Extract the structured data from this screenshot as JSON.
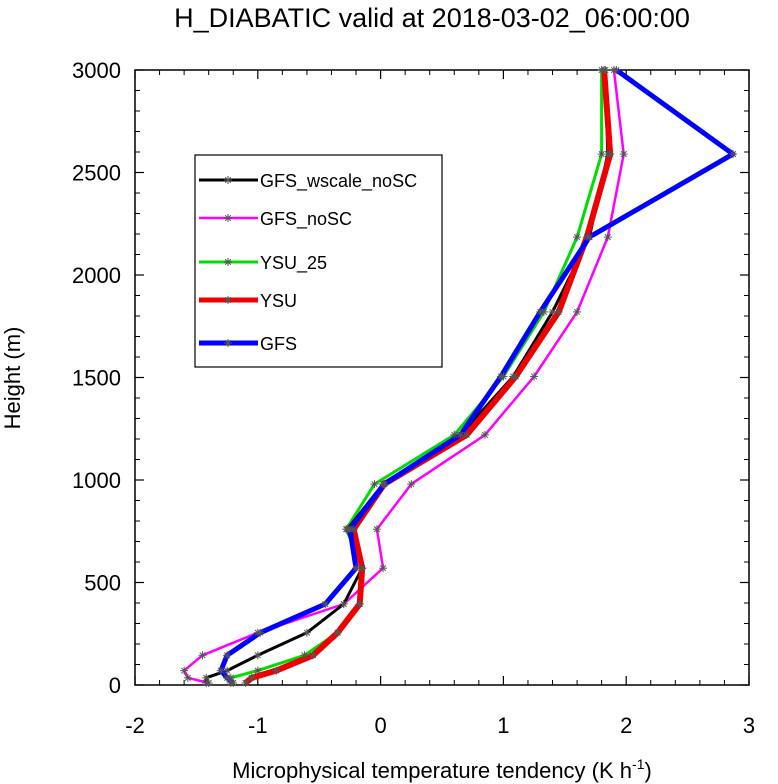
{
  "chart_data": {
    "type": "line",
    "title": "H_DIABATIC valid at 2018-03-02_06:00:00",
    "xlabel": "Microphysical temperature tendency (K h",
    "xlabel_sup": "-1",
    "xlabel_end": ")",
    "ylabel": "Height (m)",
    "xlim": [
      -2,
      3
    ],
    "ylim": [
      0,
      3000
    ],
    "x_ticks": [
      "-2",
      "-1",
      "0",
      "1",
      "2",
      "3"
    ],
    "y_ticks": [
      "0",
      "500",
      "1000",
      "1500",
      "2000",
      "2500",
      "3000"
    ],
    "grid": false,
    "legend_position": "upper-left",
    "heights": [
      10,
      35,
      70,
      145,
      255,
      395,
      570,
      760,
      980,
      1220,
      1505,
      1820,
      2185,
      2590,
      3000
    ],
    "series": [
      {
        "name": "GFS_wscale_noSC",
        "color": "#000000",
        "width": 3,
        "values": [
          -1.42,
          -1.42,
          -1.25,
          -1.0,
          -0.6,
          -0.3,
          -0.15,
          -0.27,
          0.02,
          0.65,
          1.08,
          1.4,
          1.7,
          1.85,
          1.83
        ]
      },
      {
        "name": "GFS_noSC",
        "color": "#ff00ff",
        "width": 2.5,
        "values": [
          -1.4,
          -1.57,
          -1.6,
          -1.45,
          -1.0,
          -0.3,
          0.02,
          -0.03,
          0.25,
          0.85,
          1.25,
          1.6,
          1.85,
          1.98,
          1.9
        ]
      },
      {
        "name": "YSU_25",
        "color": "#00dd00",
        "width": 3,
        "values": [
          -1.22,
          -1.22,
          -1.0,
          -0.62,
          -0.35,
          -0.17,
          -0.15,
          -0.28,
          -0.05,
          0.6,
          1.0,
          1.33,
          1.6,
          1.8,
          1.8
        ]
      },
      {
        "name": "YSU",
        "color": "#ee0000",
        "width": 6,
        "values": [
          -1.1,
          -1.05,
          -0.85,
          -0.55,
          -0.35,
          -0.17,
          -0.15,
          -0.22,
          0.03,
          0.7,
          1.1,
          1.45,
          1.68,
          1.87,
          1.82
        ]
      },
      {
        "name": "GFS",
        "color": "#0000ff",
        "width": 5,
        "values": [
          -1.2,
          -1.25,
          -1.3,
          -1.25,
          -0.98,
          -0.45,
          -0.2,
          -0.25,
          0.03,
          0.65,
          0.98,
          1.3,
          1.7,
          2.87,
          1.92
        ]
      }
    ]
  }
}
